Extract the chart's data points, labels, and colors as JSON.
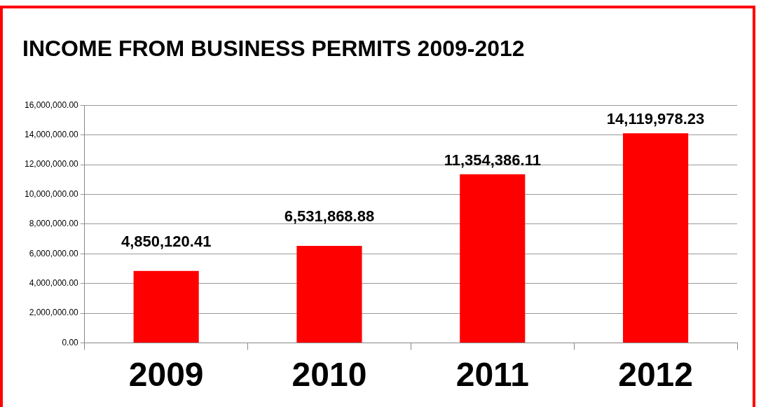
{
  "chart_data": {
    "type": "bar",
    "title": "INCOME FROM BUSINESS PERMITS 2009-2012",
    "categories": [
      "2009",
      "2010",
      "2011",
      "2012"
    ],
    "values": [
      4850120.41,
      6531868.88,
      11354386.11,
      14119978.23
    ],
    "value_labels": [
      "4,850,120.41",
      "6,531,868.88",
      "11,354,386.11",
      "14,119,978.23"
    ],
    "color": "#ff0000",
    "ylim": [
      0,
      16000000
    ],
    "yticks": [
      {
        "value": 0,
        "label": "0.00"
      },
      {
        "value": 2000000,
        "label": "2,000,000.00"
      },
      {
        "value": 4000000,
        "label": "4,000,000.00"
      },
      {
        "value": 6000000,
        "label": "6,000,000.00"
      },
      {
        "value": 8000000,
        "label": "8,000,000.00"
      },
      {
        "value": 10000000,
        "label": "10,000,000.00"
      },
      {
        "value": 12000000,
        "label": "12,000,000.00"
      },
      {
        "value": 14000000,
        "label": "14,000,000.00"
      },
      {
        "value": 16000000,
        "label": "16,000,000.00"
      }
    ],
    "grid": "y",
    "legend": false
  }
}
